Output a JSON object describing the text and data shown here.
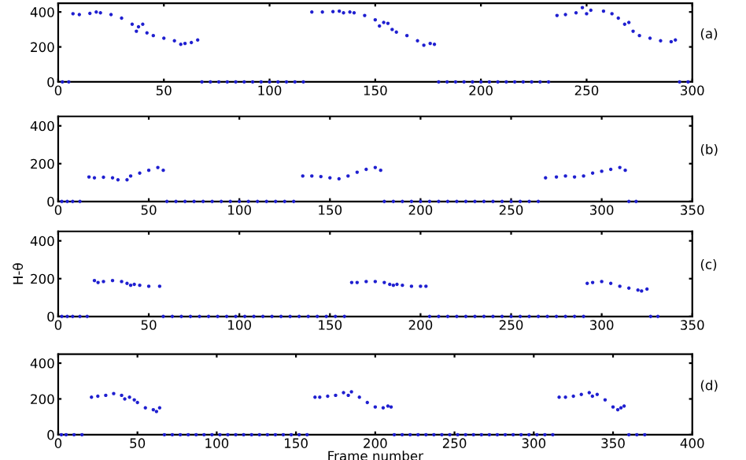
{
  "chart_data": [
    {
      "type": "scatter",
      "xlim": [
        0,
        300
      ],
      "ylim": [
        0,
        450
      ],
      "xticks": [
        0,
        50,
        100,
        150,
        200,
        250,
        300
      ],
      "yticks": [
        0,
        200,
        400
      ],
      "grid": false,
      "marker": "circle",
      "annotations": [
        "(a)"
      ],
      "series": [
        {
          "color": "#1f1fd0",
          "x": [
            7,
            10,
            15,
            18,
            20,
            25,
            30,
            35,
            37,
            38,
            40,
            42,
            45,
            50,
            55,
            58,
            60,
            63,
            66,
            120,
            125,
            130,
            133,
            135,
            138,
            140,
            145,
            150,
            152,
            154,
            156,
            158,
            160,
            165,
            170,
            173,
            176,
            178,
            236,
            240,
            245,
            248,
            250,
            252,
            258,
            262,
            265,
            268,
            270,
            272,
            275,
            280,
            285,
            290,
            292
          ],
          "values": [
            390,
            385,
            392,
            400,
            395,
            385,
            365,
            330,
            290,
            315,
            330,
            280,
            265,
            250,
            235,
            215,
            220,
            225,
            240,
            400,
            400,
            402,
            405,
            395,
            400,
            395,
            380,
            355,
            320,
            340,
            335,
            300,
            285,
            265,
            235,
            210,
            220,
            215,
            380,
            385,
            395,
            425,
            390,
            410,
            405,
            390,
            365,
            330,
            340,
            290,
            265,
            250,
            235,
            230,
            240
          ]
        },
        {
          "color": "#1f1fd0",
          "x": [
            2,
            5,
            68,
            72,
            76,
            80,
            84,
            88,
            92,
            96,
            100,
            104,
            108,
            112,
            116,
            180,
            184,
            188,
            192,
            196,
            200,
            204,
            208,
            212,
            216,
            220,
            224,
            228,
            232,
            294,
            298
          ],
          "values": [
            0,
            0,
            0,
            0,
            0,
            0,
            0,
            0,
            0,
            0,
            0,
            0,
            0,
            0,
            0,
            0,
            0,
            0,
            0,
            0,
            0,
            0,
            0,
            0,
            0,
            0,
            0,
            0,
            0,
            0,
            0
          ]
        }
      ]
    },
    {
      "type": "scatter",
      "xlim": [
        0,
        350
      ],
      "ylim": [
        0,
        450
      ],
      "xticks": [
        0,
        50,
        100,
        150,
        200,
        250,
        300,
        350
      ],
      "yticks": [
        0,
        200,
        400
      ],
      "grid": false,
      "marker": "circle",
      "annotations": [
        "(b)"
      ],
      "series": [
        {
          "color": "#1f1fd0",
          "x": [
            17,
            20,
            25,
            30,
            33,
            38,
            40,
            45,
            50,
            55,
            58,
            135,
            140,
            145,
            150,
            155,
            160,
            165,
            170,
            175,
            178,
            269,
            275,
            280,
            285,
            290,
            295,
            300,
            305,
            310,
            313
          ],
          "values": [
            130,
            125,
            128,
            125,
            115,
            115,
            135,
            150,
            165,
            180,
            165,
            135,
            135,
            132,
            125,
            120,
            135,
            155,
            170,
            180,
            165,
            125,
            130,
            135,
            130,
            135,
            150,
            160,
            170,
            180,
            165
          ]
        },
        {
          "color": "#1f1fd0",
          "x": [
            2,
            5,
            8,
            12,
            60,
            65,
            70,
            75,
            80,
            85,
            90,
            95,
            100,
            105,
            110,
            115,
            120,
            125,
            130,
            180,
            185,
            190,
            195,
            200,
            205,
            210,
            215,
            220,
            225,
            230,
            235,
            240,
            245,
            250,
            255,
            260,
            265,
            315,
            319
          ],
          "values": [
            0,
            0,
            0,
            0,
            0,
            0,
            0,
            0,
            0,
            0,
            0,
            0,
            0,
            0,
            0,
            0,
            0,
            0,
            0,
            0,
            0,
            0,
            0,
            0,
            0,
            0,
            0,
            0,
            0,
            0,
            0,
            0,
            0,
            0,
            0,
            0,
            0,
            0,
            0
          ]
        }
      ]
    },
    {
      "type": "scatter",
      "xlim": [
        0,
        350
      ],
      "ylim": [
        0,
        450
      ],
      "xticks": [
        0,
        50,
        100,
        150,
        200,
        250,
        300,
        350
      ],
      "yticks": [
        0,
        200,
        400
      ],
      "grid": false,
      "marker": "circle",
      "ylabel": "H-θ",
      "annotations": [
        "(c)"
      ],
      "series": [
        {
          "color": "#1f1fd0",
          "x": [
            20,
            22,
            25,
            30,
            35,
            38,
            40,
            42,
            45,
            50,
            56,
            162,
            165,
            170,
            175,
            180,
            183,
            185,
            187,
            190,
            195,
            200,
            203,
            292,
            295,
            300,
            305,
            310,
            315,
            320,
            322,
            325
          ],
          "values": [
            190,
            180,
            185,
            190,
            185,
            175,
            165,
            170,
            165,
            160,
            160,
            180,
            180,
            185,
            185,
            180,
            170,
            165,
            170,
            165,
            160,
            160,
            160,
            175,
            180,
            185,
            175,
            160,
            150,
            140,
            135,
            145
          ]
        },
        {
          "color": "#1f1fd0",
          "x": [
            2,
            5,
            8,
            12,
            16,
            58,
            63,
            68,
            73,
            78,
            83,
            88,
            93,
            98,
            103,
            108,
            113,
            118,
            123,
            128,
            133,
            138,
            143,
            148,
            153,
            158,
            205,
            210,
            215,
            220,
            225,
            230,
            235,
            240,
            245,
            250,
            255,
            260,
            265,
            270,
            275,
            280,
            285,
            290,
            327,
            331
          ],
          "values": [
            0,
            0,
            0,
            0,
            0,
            0,
            0,
            0,
            0,
            0,
            0,
            0,
            0,
            0,
            0,
            0,
            0,
            0,
            0,
            0,
            0,
            0,
            0,
            0,
            0,
            0,
            0,
            0,
            0,
            0,
            0,
            0,
            0,
            0,
            0,
            0,
            0,
            0,
            0,
            0,
            0,
            0,
            0,
            0,
            0,
            0
          ]
        }
      ]
    },
    {
      "type": "scatter",
      "xlim": [
        0,
        400
      ],
      "ylim": [
        0,
        450
      ],
      "xticks": [
        0,
        50,
        100,
        150,
        200,
        250,
        300,
        350,
        400
      ],
      "yticks": [
        0,
        200,
        400
      ],
      "grid": false,
      "marker": "circle",
      "xlabel": "Frame number",
      "annotations": [
        "(d)"
      ],
      "series": [
        {
          "color": "#1f1fd0",
          "x": [
            21,
            25,
            30,
            35,
            40,
            42,
            45,
            48,
            50,
            55,
            60,
            62,
            64,
            162,
            165,
            170,
            175,
            180,
            183,
            185,
            190,
            195,
            200,
            205,
            208,
            210,
            316,
            320,
            325,
            330,
            335,
            337,
            340,
            345,
            350,
            353,
            355,
            357
          ],
          "values": [
            210,
            215,
            220,
            230,
            220,
            200,
            210,
            195,
            180,
            150,
            140,
            130,
            150,
            210,
            210,
            215,
            220,
            235,
            220,
            240,
            210,
            180,
            155,
            150,
            160,
            155,
            210,
            210,
            215,
            225,
            235,
            215,
            225,
            195,
            155,
            140,
            150,
            160
          ]
        },
        {
          "color": "#1f1fd0",
          "x": [
            2,
            5,
            10,
            15,
            67,
            72,
            77,
            82,
            87,
            92,
            97,
            102,
            107,
            112,
            117,
            122,
            127,
            132,
            137,
            142,
            147,
            152,
            157,
            212,
            217,
            222,
            227,
            232,
            237,
            242,
            247,
            252,
            257,
            262,
            267,
            272,
            277,
            282,
            287,
            292,
            297,
            302,
            307,
            312,
            360,
            365,
            370
          ],
          "values": [
            0,
            0,
            0,
            0,
            0,
            0,
            0,
            0,
            0,
            0,
            0,
            0,
            0,
            0,
            0,
            0,
            0,
            0,
            0,
            0,
            0,
            0,
            0,
            0,
            0,
            0,
            0,
            0,
            0,
            0,
            0,
            0,
            0,
            0,
            0,
            0,
            0,
            0,
            0,
            0,
            0,
            0,
            0,
            0,
            0,
            0,
            0
          ]
        }
      ]
    }
  ]
}
